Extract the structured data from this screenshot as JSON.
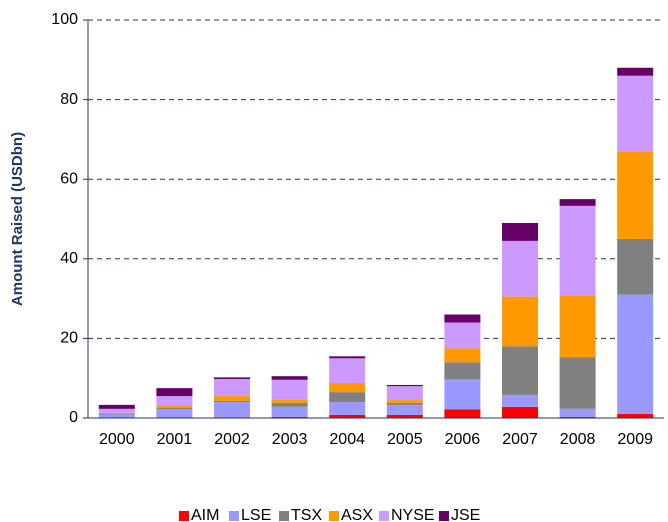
{
  "chart_data": {
    "type": "stacked_bar",
    "y_axis_label": "Amount Raised (USDbn)",
    "categories": [
      "2000",
      "2001",
      "2002",
      "2003",
      "2004",
      "2005",
      "2006",
      "2007",
      "2008",
      "2009"
    ],
    "series": [
      {
        "name": "AIM",
        "color": "#ff0000",
        "values": [
          0.1,
          0.2,
          0.2,
          0.3,
          0.8,
          0.8,
          2.2,
          2.8,
          0.3,
          1
        ]
      },
      {
        "name": "LSE",
        "color": "#9999ff",
        "values": [
          0.8,
          2,
          3.8,
          2.5,
          3.2,
          2.5,
          7.5,
          3,
          2,
          30
        ]
      },
      {
        "name": "TSX",
        "color": "#808080",
        "values": [
          0.2,
          0.3,
          0.3,
          1,
          2.5,
          0.5,
          4.3,
          12.2,
          13,
          14
        ]
      },
      {
        "name": "ASX",
        "color": "#ff9900",
        "values": [
          0.2,
          0.5,
          1.2,
          0.8,
          2.3,
          0.7,
          3.5,
          12.5,
          15.5,
          22
        ]
      },
      {
        "name": "NYSE",
        "color": "#cc99ff",
        "values": [
          1,
          2.5,
          4.3,
          5,
          6.2,
          3.5,
          6.5,
          14,
          22.5,
          19
        ]
      },
      {
        "name": "JSE",
        "color": "#660066",
        "values": [
          1,
          2,
          0.4,
          0.9,
          0.5,
          0.3,
          2,
          4.5,
          1.7,
          2
        ]
      }
    ],
    "ylim": [
      0,
      100
    ],
    "yticks": [
      0,
      20,
      40,
      60,
      80,
      100
    ],
    "grid": true
  }
}
